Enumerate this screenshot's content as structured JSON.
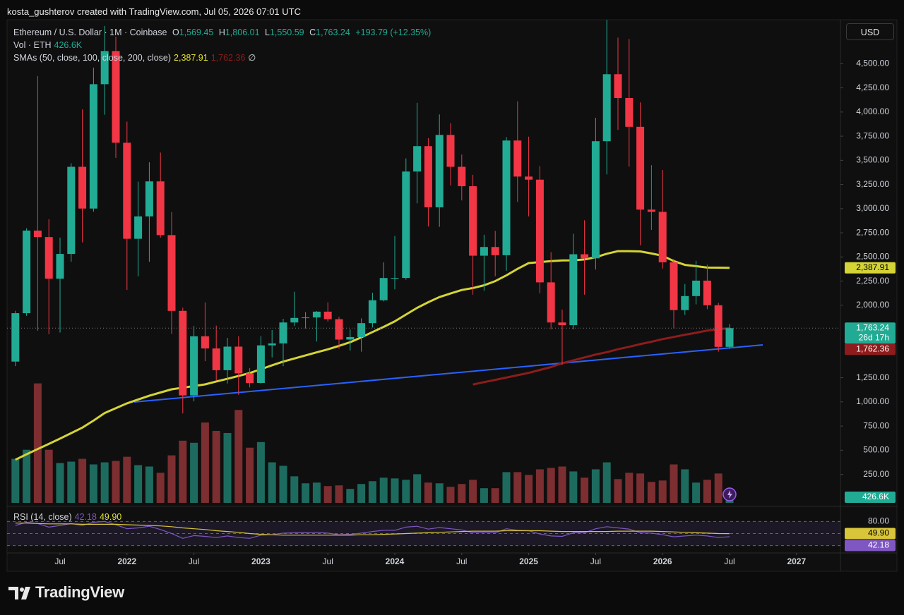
{
  "chart_data": {
    "type": "candlestick",
    "credit": "kosta_gushterov created with TradingView.com, Jul 05, 2026 07:01 UTC",
    "title": "Ethereum / U.S. Dollar · 1M · Coinbase",
    "currency": "USD",
    "brand": "TradingView",
    "ohlc_letters": [
      "O",
      "H",
      "L",
      "C"
    ],
    "last_labels": {
      "open": "1,569.45",
      "high": "1,806.01",
      "low": "1,550.59",
      "close": "1,763.24"
    },
    "change": 193.79,
    "change_pct": 12.35,
    "change_label": "+193.79 (+12.35%)",
    "countdown": "26d 17h",
    "up_color": "#22ab94",
    "down_color": "#f23645",
    "x": [
      "2021-03",
      "2021-04",
      "2021-05",
      "2021-06",
      "2021-07",
      "2021-08",
      "2021-09",
      "2021-10",
      "2021-11",
      "2021-12",
      "2022-01",
      "2022-02",
      "2022-03",
      "2022-04",
      "2022-05",
      "2022-06",
      "2022-07",
      "2022-08",
      "2022-09",
      "2022-10",
      "2022-11",
      "2022-12",
      "2023-01",
      "2023-02",
      "2023-03",
      "2023-04",
      "2023-05",
      "2023-06",
      "2023-07",
      "2023-08",
      "2023-09",
      "2023-10",
      "2023-11",
      "2023-12",
      "2024-01",
      "2024-02",
      "2024-03",
      "2024-04",
      "2024-05",
      "2024-06",
      "2024-07",
      "2024-08",
      "2024-09",
      "2024-10",
      "2024-11",
      "2024-12",
      "2025-01",
      "2025-02",
      "2025-03",
      "2025-04",
      "2025-05",
      "2025-06",
      "2025-07",
      "2025-08",
      "2025-09",
      "2025-10",
      "2025-11",
      "2025-12",
      "2026-01",
      "2026-02",
      "2026-03",
      "2026-04",
      "2026-05",
      "2026-06",
      "2026-07"
    ],
    "open": [
      1417,
      1918,
      2773,
      2706,
      2275,
      2531,
      3433,
      3001,
      4288,
      4631,
      3682,
      2688,
      2920,
      3282,
      2726,
      1942,
      1067,
      1679,
      1553,
      1328,
      1572,
      1295,
      1196,
      1585,
      1605,
      1822,
      1869,
      1874,
      1934,
      1856,
      1645,
      1671,
      1815,
      2052,
      2282,
      2283,
      3384,
      3647,
      3014,
      3763,
      3433,
      3232,
      2513,
      2603,
      2518,
      3705,
      3332,
      3300,
      2237,
      1822,
      1794,
      2528,
      2486,
      3698,
      4391,
      4145,
      3847,
      2990,
      2967,
      2445,
      1950,
      2095,
      2255,
      2000,
      1569.45
    ],
    "high": [
      1943,
      2797,
      4372,
      2890,
      2700,
      3470,
      4027,
      4460,
      4891,
      4780,
      3900,
      3280,
      3480,
      3580,
      2965,
      1975,
      1785,
      2030,
      1790,
      1663,
      1680,
      1350,
      1680,
      1743,
      1860,
      2140,
      1930,
      1940,
      2030,
      1880,
      1750,
      1865,
      2130,
      2445,
      2717,
      3520,
      4095,
      3730,
      3975,
      3885,
      3560,
      3350,
      2730,
      2770,
      3740,
      4110,
      3745,
      3440,
      2550,
      1955,
      2740,
      2880,
      3940,
      4956,
      4770,
      4755,
      4100,
      3450,
      3400,
      2480,
      2220,
      2460,
      2420,
      2025,
      1806.01
    ],
    "low": [
      1370,
      1890,
      1737,
      1700,
      1718,
      2450,
      2650,
      2970,
      3972,
      3525,
      2159,
      2300,
      2450,
      2700,
      1704,
      880,
      1005,
      1422,
      1220,
      1190,
      1073,
      1150,
      1190,
      1460,
      1370,
      1785,
      1760,
      1625,
      1830,
      1550,
      1531,
      1520,
      1770,
      2040,
      2165,
      2265,
      3055,
      2815,
      2812,
      3240,
      3085,
      2110,
      2150,
      2300,
      2357,
      3070,
      2920,
      2125,
      1750,
      1385,
      1750,
      2110,
      2370,
      3355,
      3815,
      3435,
      2620,
      2780,
      2380,
      1760,
      1900,
      2010,
      1960,
      1520,
      1550.59
    ],
    "close": [
      1918,
      2773,
      2706,
      2275,
      2531,
      3433,
      3001,
      4288,
      4631,
      3682,
      2688,
      2920,
      3282,
      2726,
      1942,
      1067,
      1679,
      1553,
      1328,
      1572,
      1295,
      1196,
      1585,
      1605,
      1822,
      1869,
      1874,
      1934,
      1856,
      1645,
      1671,
      1815,
      2052,
      2282,
      2283,
      3384,
      3647,
      3014,
      3763,
      3433,
      3232,
      2513,
      2603,
      2518,
      3705,
      3332,
      3300,
      2237,
      1822,
      1794,
      2528,
      2486,
      3698,
      4391,
      4145,
      3847,
      2990,
      2967,
      2445,
      1950,
      2095,
      2255,
      2000,
      1569.45,
      1763.24
    ],
    "ylim": [
      -45,
      4955
    ],
    "yticks": [
      {
        "value": 250,
        "label": "250.00"
      },
      {
        "value": 500,
        "label": "500.00"
      },
      {
        "value": 750,
        "label": "750.00"
      },
      {
        "value": 1000,
        "label": "1,000.00"
      },
      {
        "value": 1250,
        "label": "1,250.00"
      },
      {
        "value": 2000,
        "label": "2,000.00"
      },
      {
        "value": 2250,
        "label": "2,250.00"
      },
      {
        "value": 2500,
        "label": "2,500.00"
      },
      {
        "value": 2750,
        "label": "2,750.00"
      },
      {
        "value": 3000,
        "label": "3,000.00"
      },
      {
        "value": 3250,
        "label": "3,250.00"
      },
      {
        "value": 3500,
        "label": "3,500.00"
      },
      {
        "value": 3750,
        "label": "3,750.00"
      },
      {
        "value": 4000,
        "label": "4,000.00"
      },
      {
        "value": 4250,
        "label": "4,250.00"
      },
      {
        "value": 4500,
        "label": "4,500.00"
      }
    ],
    "xticks": [
      {
        "value": "2021-07",
        "label": "Jul"
      },
      {
        "value": "2022-01",
        "label": "2022"
      },
      {
        "value": "2022-07",
        "label": "Jul"
      },
      {
        "value": "2023-01",
        "label": "2023"
      },
      {
        "value": "2023-07",
        "label": "Jul"
      },
      {
        "value": "2024-01",
        "label": "2024"
      },
      {
        "value": "2024-07",
        "label": "Jul"
      },
      {
        "value": "2025-01",
        "label": "2025"
      },
      {
        "value": "2025-07",
        "label": "Jul"
      },
      {
        "value": "2026-01",
        "label": "2026"
      },
      {
        "value": "2026-07",
        "label": "Jul"
      },
      {
        "value": "2027-01",
        "label": "2027"
      }
    ],
    "grid": false,
    "volume": {
      "name": "Vol · ETH",
      "up_color": "#1d6b5f",
      "down_color": "#7d2e31",
      "last_label": "426.6K",
      "ylim": [
        0,
        13000000
      ],
      "values": [
        3339000,
        4028000,
        9063000,
        4028000,
        3021000,
        3127000,
        3339000,
        2915000,
        3074000,
        3180000,
        3498000,
        2862000,
        2756000,
        2279000,
        3604000,
        4717000,
        4558000,
        6095000,
        5459000,
        5300000,
        7049000,
        4187000,
        4611000,
        3074000,
        2809000,
        2014000,
        1484000,
        1537000,
        1272000,
        1325000,
        1060000,
        1431000,
        1643000,
        1908000,
        1855000,
        1749000,
        2173000,
        1537000,
        1484000,
        1219000,
        1431000,
        1749000,
        1113000,
        1113000,
        2332000,
        2332000,
        2120000,
        2544000,
        2650000,
        2756000,
        2385000,
        1908000,
        2544000,
        3074000,
        1802000,
        2279000,
        2226000,
        1590000,
        1696000,
        2915000,
        2544000,
        1537000,
        1749000,
        2226000,
        426600
      ]
    },
    "sma_title": "SMAs (50, close, 100, close, 200, close)",
    "sma_empty": "∅",
    "sma": [
      {
        "name": "SMA 50",
        "color": "#d4d436",
        "last_label": "2,387.91",
        "values": [
          402,
          458,
          512,
          565,
          620,
          677,
          734,
          806,
          885,
          935,
          985,
          1025,
          1064,
          1097,
          1130,
          1147,
          1164,
          1181,
          1211,
          1239,
          1268,
          1299,
          1338,
          1379,
          1417,
          1449,
          1481,
          1513,
          1544,
          1580,
          1618,
          1668,
          1723,
          1776,
          1834,
          1904,
          1973,
          2032,
          2085,
          2122,
          2158,
          2178,
          2207,
          2250,
          2310,
          2377,
          2437,
          2447,
          2457,
          2464,
          2465,
          2474,
          2497,
          2533,
          2560,
          2560,
          2557,
          2536,
          2512,
          2457,
          2418,
          2405,
          2390,
          2389,
          2387.91
        ]
      },
      {
        "name": "SMA 100",
        "color": "#8e1c1c",
        "last_label": "1,762.36",
        "values": [
          null,
          null,
          null,
          null,
          null,
          null,
          null,
          null,
          null,
          null,
          null,
          null,
          null,
          null,
          null,
          null,
          null,
          null,
          null,
          null,
          null,
          null,
          null,
          null,
          null,
          null,
          null,
          null,
          null,
          null,
          null,
          null,
          null,
          null,
          null,
          null,
          null,
          null,
          null,
          null,
          null,
          1180,
          1205,
          1228,
          1252,
          1276,
          1300,
          1330,
          1360,
          1400,
          1430,
          1460,
          1490,
          1515,
          1545,
          1570,
          1598,
          1622,
          1650,
          1672,
          1695,
          1715,
          1738,
          1752,
          1762.36
        ]
      }
    ],
    "rsi": {
      "title": "RSI (14, close)",
      "ylim": [
        0,
        100
      ],
      "levels": [
        80,
        50,
        20
      ],
      "yticks": [
        {
          "value": 80,
          "label": "80.00"
        }
      ],
      "series": [
        {
          "name": "RSI",
          "color": "#7e57c2",
          "values": [
            70,
            78,
            75,
            66,
            70,
            75,
            70,
            78,
            80,
            72,
            62,
            64,
            68,
            60,
            50,
            38,
            45,
            43,
            40,
            44,
            40,
            38,
            46,
            47,
            51,
            52,
            52,
            53,
            51,
            47,
            48,
            51,
            55,
            58,
            58,
            66,
            68,
            61,
            65,
            62,
            59,
            52,
            53,
            52,
            62,
            58,
            57,
            49,
            44,
            43,
            52,
            52,
            62,
            67,
            64,
            61,
            52,
            51,
            47,
            42,
            44,
            46,
            44,
            40,
            42.18
          ]
        },
        {
          "name": "RSI-based MA",
          "color": "#d8c53a",
          "last_label": "49.90",
          "values": [
            76,
            76,
            75,
            74,
            74,
            74,
            73,
            73,
            73,
            73,
            72,
            71,
            70,
            69,
            67,
            64,
            62,
            60,
            57,
            55,
            53,
            50,
            48,
            47,
            46,
            46,
            46,
            46,
            46,
            46,
            46,
            47,
            47,
            48,
            49,
            50,
            51,
            52,
            53,
            54,
            55,
            56,
            56,
            56,
            57,
            57,
            57,
            57,
            56,
            55,
            55,
            55,
            55,
            55,
            56,
            56,
            56,
            56,
            55,
            54,
            53,
            52,
            51,
            50,
            49.9
          ]
        }
      ]
    }
  }
}
